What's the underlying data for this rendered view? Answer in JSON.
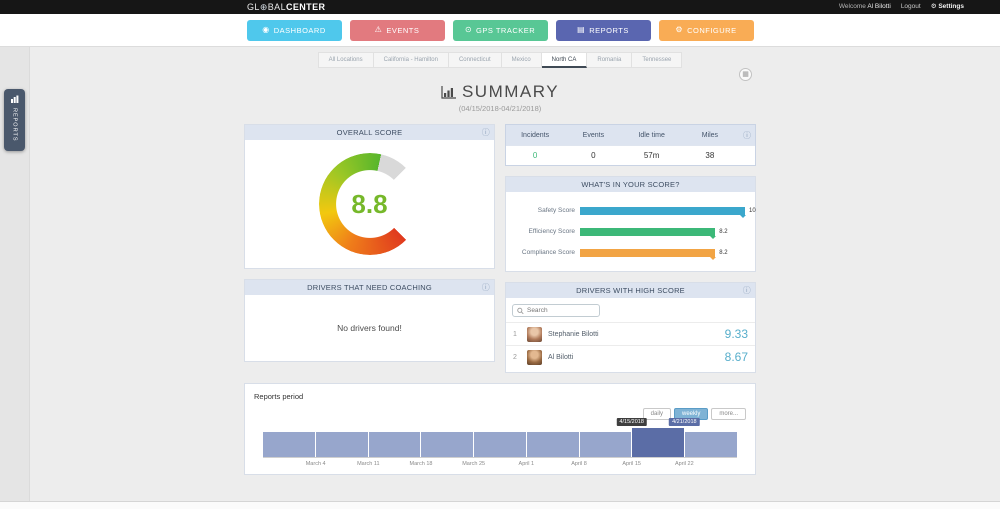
{
  "topbar": {
    "logo": {
      "prefix": "GL",
      "globe": "⊕",
      "mid": "BAL",
      "suffix": "CENTER"
    },
    "welcome": "Welcome",
    "username": "Al Bilotti",
    "logout": "Logout",
    "settings": "Settings"
  },
  "icons": {
    "info": "ⓘ",
    "widget_menu": "▦",
    "gear": "⚙"
  },
  "nav": {
    "buttons": [
      {
        "label": "DASHBOARD",
        "icon": "◉",
        "color": "#4fc8ec"
      },
      {
        "label": "EVENTS",
        "icon": "⚠",
        "color": "#e27a7f"
      },
      {
        "label": "GPS TRACKER",
        "icon": "⊙",
        "color": "#58c795"
      },
      {
        "label": "REPORTS",
        "icon": "▤",
        "color": "#5a66b0"
      },
      {
        "label": "CONFIGURE",
        "icon": "⚙",
        "color": "#f9ac55"
      }
    ],
    "active": "REPORTS"
  },
  "location_tabs": {
    "items": [
      "All Locations",
      "California - Hamilton",
      "Connecticut",
      "Mexico",
      "North CA",
      "Romania",
      "Tennessee"
    ],
    "active": "North CA"
  },
  "side_tab": {
    "label": "REPORTS"
  },
  "page": {
    "title": "SUMMARY",
    "date_range": "(04/15/2018-04/21/2018)"
  },
  "stats": {
    "columns": [
      "Incidents",
      "Events",
      "Idle time",
      "Miles"
    ],
    "values": [
      "0",
      "0",
      "57m",
      "38"
    ]
  },
  "cards": {
    "overall_score": {
      "title": "OVERALL SCORE",
      "value": "8.8"
    },
    "coaching": {
      "title": "DRIVERS THAT NEED COACHING",
      "empty_message": "No drivers found!"
    },
    "score_breakdown": {
      "title": "WHAT'S IN YOUR SCORE?"
    },
    "high_score": {
      "title": "DRIVERS WITH HIGH SCORE",
      "search_placeholder": "Search",
      "drivers": [
        {
          "rank": "1",
          "name": "Stephanie Bilotti",
          "score": "9.33"
        },
        {
          "rank": "2",
          "name": "Al Bilotti",
          "score": "8.67"
        }
      ]
    },
    "reports_period": {
      "title": "Reports period",
      "buttons": [
        "daily",
        "weekly",
        "more..."
      ],
      "active_button": "weekly",
      "selection_start": "4/15/2018",
      "selection_end": "4/21/2018"
    }
  },
  "chart_data": [
    {
      "id": "overall-score-gauge",
      "type": "pie",
      "variant": "gauge",
      "title": "OVERALL SCORE",
      "value": 8.8,
      "max": 10,
      "sweep_degrees": 270,
      "colors": {
        "low": "#e03a1e",
        "mid": "#f2c80f",
        "high": "#58b62c",
        "rest": "#d9d9d9"
      },
      "value_color": "#76b82a"
    },
    {
      "id": "score-breakdown",
      "type": "bar",
      "orientation": "horizontal",
      "title": "WHAT'S IN YOUR SCORE?",
      "categories": [
        "Safety Score",
        "Efficiency Score",
        "Compliance Score"
      ],
      "values": [
        10,
        8.2,
        8.2
      ],
      "colors": [
        "#3ba7cc",
        "#3cb878",
        "#f2a444"
      ],
      "xlim": [
        0,
        10
      ]
    },
    {
      "id": "reports-period-timeline",
      "type": "bar",
      "title": "Reports period",
      "x_tick_labels": [
        "March 4",
        "March 11",
        "March 18",
        "March 25",
        "April 1",
        "April 8",
        "April 15",
        "April 22"
      ],
      "weeks": 9,
      "values": [
        1,
        1,
        1,
        1,
        1,
        1,
        1,
        1,
        1
      ],
      "selected_week_index": 7,
      "selected_range": [
        "4/15/2018",
        "4/21/2018"
      ],
      "bar_color": "#97a6cc",
      "selected_color": "#5b6da6"
    }
  ]
}
